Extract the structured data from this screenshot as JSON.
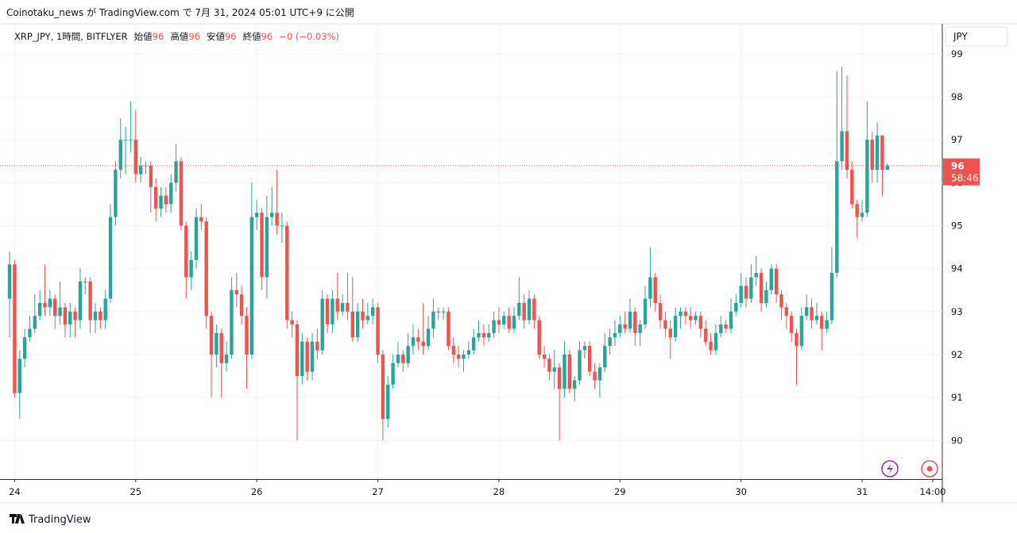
{
  "header": {
    "published": "Coinotaku_news が TradingView.com で 7月 31, 2024 05:01 UTC+9 に公開"
  },
  "legend": {
    "symbol": "XRP_JPY, 1時間, BITFLYER",
    "open_label": "始値",
    "open": "96",
    "high_label": "高値",
    "high": "96",
    "low_label": "安値",
    "low": "96",
    "close_label": "終値",
    "close": "96",
    "change": "−0 (−0.03%)"
  },
  "price_axis": {
    "currency": "JPY",
    "last_price": "96",
    "countdown": "58:46"
  },
  "footer": {
    "brand": "TradingView"
  },
  "chart_data": {
    "type": "candlestick",
    "up_color": "#26a69a",
    "down_color": "#ef5350",
    "grid": true,
    "ylim": [
      89.1,
      99.7
    ],
    "yticks": [
      90,
      91,
      92,
      93,
      94,
      95,
      96,
      97,
      98,
      99
    ],
    "xlim": [
      -1.9,
      184.9
    ],
    "xticks": [
      {
        "value": 1,
        "label": "24"
      },
      {
        "value": 25,
        "label": "25"
      },
      {
        "value": 49,
        "label": "26"
      },
      {
        "value": 73,
        "label": "27"
      },
      {
        "value": 97,
        "label": "28"
      },
      {
        "value": 121,
        "label": "29"
      },
      {
        "value": 145,
        "label": "30"
      },
      {
        "value": 169,
        "label": "31"
      },
      {
        "value": 183,
        "label": "14:00"
      }
    ],
    "ohlc": [
      [
        93.3,
        94.4,
        92.4,
        94.1
      ],
      [
        94.1,
        94.2,
        91.0,
        91.1
      ],
      [
        91.1,
        92.1,
        90.5,
        91.9
      ],
      [
        91.9,
        92.6,
        91.7,
        92.4
      ],
      [
        92.4,
        92.9,
        92.3,
        92.6
      ],
      [
        92.6,
        93.4,
        92.5,
        92.9
      ],
      [
        92.9,
        93.5,
        92.8,
        93.2
      ],
      [
        93.2,
        94.1,
        92.9,
        93.1
      ],
      [
        93.1,
        93.5,
        92.9,
        93.3
      ],
      [
        93.3,
        93.4,
        92.6,
        92.9
      ],
      [
        92.9,
        93.7,
        92.7,
        93.1
      ],
      [
        93.1,
        93.2,
        92.4,
        92.7
      ],
      [
        92.7,
        93.2,
        92.4,
        93.0
      ],
      [
        93.0,
        93.1,
        92.4,
        92.8
      ],
      [
        92.8,
        94.0,
        92.6,
        93.7
      ],
      [
        93.7,
        93.8,
        93.4,
        93.7
      ],
      [
        93.7,
        93.8,
        92.5,
        92.8
      ],
      [
        92.8,
        93.2,
        92.5,
        93.0
      ],
      [
        93.0,
        93.1,
        92.6,
        92.8
      ],
      [
        92.8,
        93.5,
        92.6,
        93.3
      ],
      [
        93.3,
        95.5,
        93.2,
        95.2
      ],
      [
        95.2,
        96.5,
        95.0,
        96.3
      ],
      [
        96.3,
        97.5,
        96.1,
        97.0
      ],
      [
        97.0,
        97.3,
        96.2,
        97.0
      ],
      [
        97.0,
        97.9,
        96.7,
        97.0
      ],
      [
        97.0,
        97.7,
        96.0,
        96.2
      ],
      [
        96.2,
        96.6,
        96.0,
        96.4
      ],
      [
        96.4,
        96.5,
        96.2,
        96.4
      ],
      [
        96.4,
        96.5,
        95.3,
        95.9
      ],
      [
        95.9,
        96.1,
        95.1,
        95.4
      ],
      [
        95.4,
        95.9,
        95.2,
        95.7
      ],
      [
        95.7,
        95.9,
        95.3,
        95.5
      ],
      [
        95.5,
        96.2,
        95.3,
        96.0
      ],
      [
        96.0,
        96.9,
        95.8,
        96.5
      ],
      [
        96.5,
        96.6,
        94.9,
        95.0
      ],
      [
        95.0,
        95.1,
        93.3,
        93.8
      ],
      [
        93.8,
        94.4,
        93.5,
        94.2
      ],
      [
        94.2,
        95.4,
        94.0,
        95.2
      ],
      [
        95.2,
        95.5,
        94.9,
        95.1
      ],
      [
        95.1,
        95.2,
        92.6,
        92.9
      ],
      [
        92.9,
        93.0,
        91.0,
        92.0
      ],
      [
        92.0,
        92.7,
        91.7,
        92.5
      ],
      [
        92.5,
        92.6,
        91.0,
        91.8
      ],
      [
        91.8,
        92.3,
        91.6,
        92.0
      ],
      [
        92.0,
        93.8,
        91.9,
        93.5
      ],
      [
        93.5,
        93.9,
        93.1,
        93.4
      ],
      [
        93.4,
        93.6,
        92.7,
        92.9
      ],
      [
        92.9,
        93.1,
        91.2,
        92.0
      ],
      [
        92.0,
        96.0,
        91.9,
        95.2
      ],
      [
        95.2,
        95.6,
        94.9,
        95.3
      ],
      [
        95.3,
        95.4,
        93.5,
        93.8
      ],
      [
        93.8,
        95.7,
        93.3,
        95.2
      ],
      [
        95.2,
        95.9,
        95.0,
        95.3
      ],
      [
        95.3,
        96.3,
        94.8,
        95.0
      ],
      [
        95.0,
        95.3,
        94.6,
        95.0
      ],
      [
        95.0,
        95.1,
        92.6,
        92.8
      ],
      [
        92.8,
        93.0,
        92.4,
        92.7
      ],
      [
        92.7,
        92.8,
        90.0,
        91.5
      ],
      [
        91.5,
        92.5,
        91.3,
        92.3
      ],
      [
        92.3,
        92.4,
        91.4,
        91.6
      ],
      [
        91.6,
        92.5,
        91.4,
        92.3
      ],
      [
        92.3,
        92.6,
        91.9,
        92.1
      ],
      [
        92.1,
        93.5,
        92.0,
        93.3
      ],
      [
        93.3,
        93.4,
        92.5,
        92.7
      ],
      [
        92.7,
        93.5,
        92.5,
        93.3
      ],
      [
        93.3,
        93.9,
        92.8,
        93.0
      ],
      [
        93.0,
        93.4,
        92.9,
        93.2
      ],
      [
        93.2,
        93.9,
        92.8,
        93.0
      ],
      [
        93.0,
        93.8,
        92.3,
        92.4
      ],
      [
        92.4,
        93.2,
        92.3,
        93.0
      ],
      [
        93.0,
        93.3,
        92.6,
        92.8
      ],
      [
        92.8,
        93.2,
        92.7,
        92.9
      ],
      [
        92.9,
        93.3,
        92.7,
        93.1
      ],
      [
        93.1,
        93.2,
        91.8,
        92.0
      ],
      [
        92.0,
        92.1,
        90.0,
        90.5
      ],
      [
        90.5,
        91.5,
        90.3,
        91.3
      ],
      [
        91.3,
        92.0,
        91.2,
        91.8
      ],
      [
        91.8,
        92.3,
        91.7,
        92.0
      ],
      [
        92.0,
        92.1,
        91.6,
        91.8
      ],
      [
        91.8,
        92.5,
        91.7,
        92.2
      ],
      [
        92.2,
        92.7,
        92.0,
        92.4
      ],
      [
        92.4,
        92.6,
        92.1,
        92.3
      ],
      [
        92.3,
        93.2,
        92.0,
        92.2
      ],
      [
        92.2,
        92.9,
        92.1,
        92.6
      ],
      [
        92.6,
        93.3,
        92.4,
        93.0
      ],
      [
        93.0,
        93.1,
        92.8,
        93.0
      ],
      [
        93.0,
        93.1,
        92.8,
        93.0
      ],
      [
        93.0,
        93.1,
        92.1,
        92.2
      ],
      [
        92.2,
        92.4,
        91.8,
        92.0
      ],
      [
        92.0,
        92.2,
        91.7,
        91.9
      ],
      [
        91.9,
        92.1,
        91.6,
        92.0
      ],
      [
        92.0,
        92.3,
        91.9,
        92.1
      ],
      [
        92.1,
        92.6,
        92.0,
        92.4
      ],
      [
        92.4,
        92.8,
        92.3,
        92.5
      ],
      [
        92.5,
        92.7,
        92.2,
        92.4
      ],
      [
        92.4,
        92.7,
        92.3,
        92.5
      ],
      [
        92.5,
        93.0,
        92.4,
        92.8
      ],
      [
        92.8,
        93.1,
        92.5,
        92.7
      ],
      [
        92.7,
        93.0,
        92.6,
        92.9
      ],
      [
        92.9,
        93.1,
        92.5,
        92.6
      ],
      [
        92.6,
        93.1,
        92.5,
        92.9
      ],
      [
        92.9,
        93.8,
        92.8,
        93.2
      ],
      [
        93.2,
        93.4,
        92.6,
        92.8
      ],
      [
        92.8,
        93.5,
        92.7,
        93.3
      ],
      [
        93.3,
        93.4,
        92.6,
        92.8
      ],
      [
        92.8,
        92.9,
        91.9,
        92.0
      ],
      [
        92.0,
        92.2,
        91.7,
        91.9
      ],
      [
        91.9,
        92.0,
        91.4,
        91.6
      ],
      [
        91.6,
        92.1,
        91.2,
        91.7
      ],
      [
        91.7,
        91.8,
        90.0,
        91.2
      ],
      [
        91.2,
        92.3,
        91.0,
        92.0
      ],
      [
        92.0,
        92.1,
        91.1,
        91.2
      ],
      [
        91.2,
        91.5,
        90.9,
        91.4
      ],
      [
        91.4,
        92.3,
        91.3,
        92.1
      ],
      [
        92.1,
        92.3,
        91.9,
        92.2
      ],
      [
        92.2,
        92.3,
        91.5,
        91.6
      ],
      [
        91.6,
        91.8,
        91.2,
        91.4
      ],
      [
        91.4,
        91.8,
        91.0,
        91.7
      ],
      [
        91.7,
        92.5,
        91.6,
        92.2
      ],
      [
        92.2,
        92.6,
        92.0,
        92.4
      ],
      [
        92.4,
        92.8,
        92.2,
        92.5
      ],
      [
        92.5,
        92.9,
        92.4,
        92.7
      ],
      [
        92.7,
        93.0,
        92.5,
        92.6
      ],
      [
        92.6,
        93.3,
        92.5,
        93.0
      ],
      [
        93.0,
        93.1,
        92.2,
        92.5
      ],
      [
        92.5,
        92.8,
        92.2,
        92.7
      ],
      [
        92.7,
        93.6,
        92.6,
        93.3
      ],
      [
        93.3,
        94.5,
        93.1,
        93.8
      ],
      [
        93.8,
        93.9,
        93.0,
        93.2
      ],
      [
        93.2,
        93.4,
        92.6,
        92.8
      ],
      [
        92.8,
        93.0,
        92.4,
        92.6
      ],
      [
        92.6,
        92.8,
        91.9,
        92.4
      ],
      [
        92.4,
        93.1,
        92.3,
        92.9
      ],
      [
        92.9,
        93.1,
        92.6,
        93.0
      ],
      [
        93.0,
        93.1,
        92.7,
        92.9
      ],
      [
        92.9,
        93.1,
        92.6,
        92.8
      ],
      [
        92.8,
        93.0,
        92.7,
        92.9
      ],
      [
        92.9,
        93.0,
        92.4,
        92.6
      ],
      [
        92.6,
        92.8,
        92.2,
        92.3
      ],
      [
        92.3,
        92.5,
        92.0,
        92.1
      ],
      [
        92.1,
        92.7,
        92.0,
        92.5
      ],
      [
        92.5,
        92.9,
        92.4,
        92.7
      ],
      [
        92.7,
        92.8,
        92.5,
        92.6
      ],
      [
        92.6,
        93.3,
        92.5,
        93.0
      ],
      [
        93.0,
        93.4,
        92.9,
        93.2
      ],
      [
        93.2,
        93.9,
        93.1,
        93.6
      ],
      [
        93.6,
        93.8,
        93.1,
        93.3
      ],
      [
        93.3,
        94.1,
        93.2,
        93.8
      ],
      [
        93.8,
        94.3,
        93.6,
        93.9
      ],
      [
        93.9,
        94.0,
        93.0,
        93.2
      ],
      [
        93.2,
        93.7,
        93.1,
        93.5
      ],
      [
        93.5,
        94.1,
        93.4,
        94.0
      ],
      [
        94.0,
        94.1,
        93.2,
        93.4
      ],
      [
        93.4,
        93.5,
        92.8,
        93.1
      ],
      [
        93.1,
        93.2,
        92.6,
        92.9
      ],
      [
        92.9,
        93.0,
        92.3,
        92.5
      ],
      [
        92.5,
        92.6,
        91.3,
        92.2
      ],
      [
        92.2,
        93.1,
        92.1,
        92.9
      ],
      [
        92.9,
        93.4,
        92.8,
        93.1
      ],
      [
        93.1,
        93.3,
        92.6,
        92.8
      ],
      [
        92.8,
        93.2,
        92.7,
        92.9
      ],
      [
        92.9,
        93.0,
        92.1,
        92.6
      ],
      [
        92.6,
        93.0,
        92.5,
        92.8
      ],
      [
        92.8,
        94.5,
        92.7,
        93.9
      ],
      [
        93.9,
        98.6,
        93.8,
        96.5
      ],
      [
        96.5,
        98.7,
        96.3,
        97.2
      ],
      [
        97.2,
        98.5,
        96.1,
        96.3
      ],
      [
        96.3,
        96.5,
        95.4,
        95.5
      ],
      [
        95.5,
        95.6,
        94.7,
        95.2
      ],
      [
        95.2,
        95.6,
        95.1,
        95.3
      ],
      [
        95.3,
        97.9,
        95.2,
        97.0
      ],
      [
        97.0,
        97.2,
        96.0,
        96.3
      ],
      [
        96.3,
        97.4,
        96.0,
        97.1
      ],
      [
        97.1,
        97.1,
        95.7,
        96.3
      ],
      [
        96.3,
        96.45,
        96.3,
        96.4
      ]
    ]
  }
}
